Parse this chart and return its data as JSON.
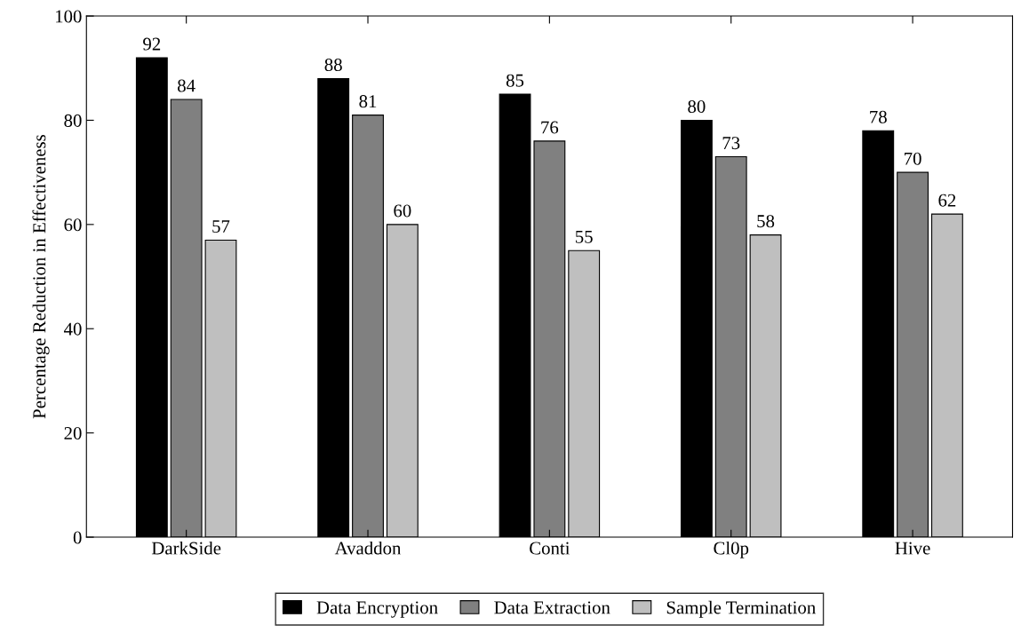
{
  "chart_data": {
    "type": "bar",
    "ylabel": "Percentage Reduction in Effectiveness",
    "categories": [
      "DarkSide",
      "Avaddon",
      "Conti",
      "Cl0p",
      "Hive"
    ],
    "series": [
      {
        "name": "Data Encryption",
        "color": "#000000",
        "values": [
          92,
          88,
          85,
          80,
          78
        ]
      },
      {
        "name": "Data Extraction",
        "color": "#808080",
        "values": [
          84,
          81,
          76,
          73,
          70
        ]
      },
      {
        "name": "Sample Termination",
        "color": "#bfbfbf",
        "values": [
          57,
          60,
          55,
          58,
          62
        ]
      }
    ],
    "ylim": [
      0,
      100
    ],
    "yticks": [
      0,
      20,
      40,
      60,
      80,
      100
    ],
    "data_labels": true,
    "legend": "bottom",
    "grid": false
  }
}
